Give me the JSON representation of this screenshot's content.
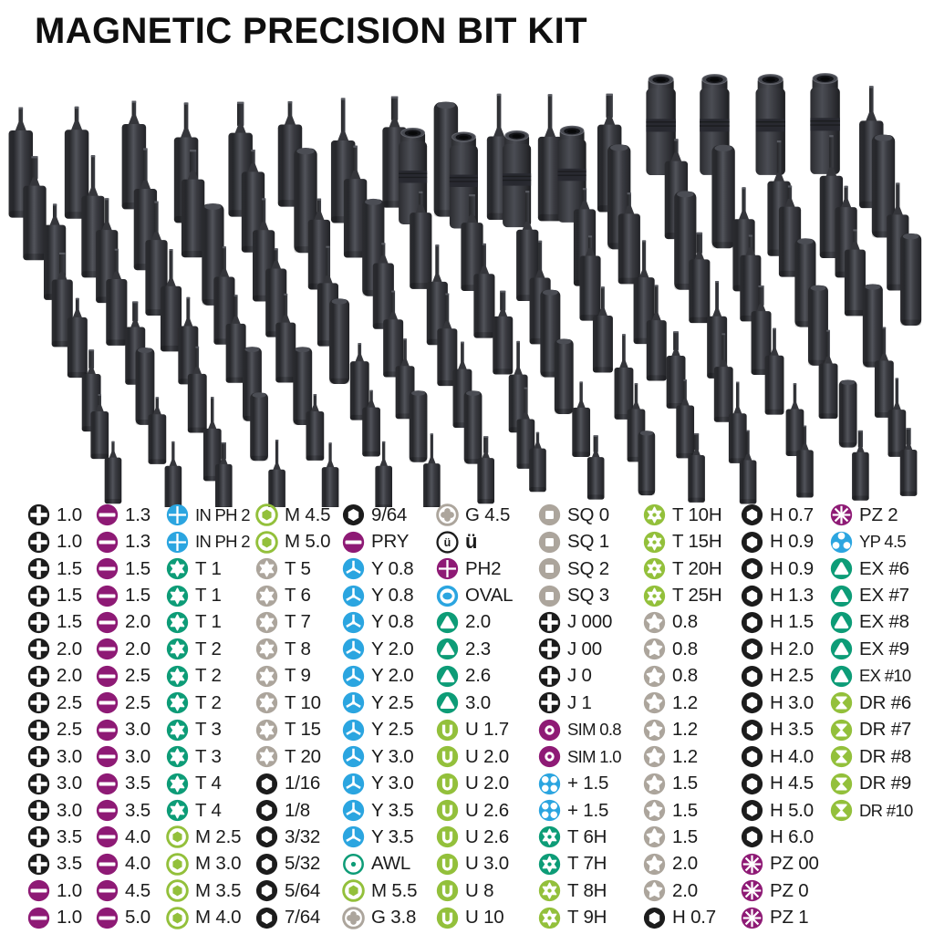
{
  "title": "MAGNETIC PRECISION BIT KIT",
  "colors": {
    "black": "#1c1c1c",
    "purple": "#8e1a75",
    "blue": "#2ba5e0",
    "teal": "#0d9c77",
    "lime": "#93c03b",
    "gray": "#aca59c"
  },
  "legend": {
    "columns": [
      {
        "items": [
          {
            "icon": "ph",
            "color": "black",
            "label": "1.0"
          },
          {
            "icon": "ph",
            "color": "black",
            "label": "1.0"
          },
          {
            "icon": "ph",
            "color": "black",
            "label": "1.5"
          },
          {
            "icon": "ph",
            "color": "black",
            "label": "1.5"
          },
          {
            "icon": "ph",
            "color": "black",
            "label": "1.5"
          },
          {
            "icon": "ph",
            "color": "black",
            "label": "2.0"
          },
          {
            "icon": "ph",
            "color": "black",
            "label": "2.0"
          },
          {
            "icon": "ph",
            "color": "black",
            "label": "2.5"
          },
          {
            "icon": "ph",
            "color": "black",
            "label": "2.5"
          },
          {
            "icon": "ph",
            "color": "black",
            "label": "3.0"
          },
          {
            "icon": "ph",
            "color": "black",
            "label": "3.0"
          },
          {
            "icon": "ph",
            "color": "black",
            "label": "3.0"
          },
          {
            "icon": "ph",
            "color": "black",
            "label": "3.5"
          },
          {
            "icon": "ph",
            "color": "black",
            "label": "3.5"
          },
          {
            "icon": "slot",
            "color": "purple",
            "label": "1.0"
          },
          {
            "icon": "slot",
            "color": "purple",
            "label": "1.0"
          }
        ]
      },
      {
        "items": [
          {
            "icon": "slot",
            "color": "purple",
            "label": "1.3"
          },
          {
            "icon": "slot",
            "color": "purple",
            "label": "1.3"
          },
          {
            "icon": "slot",
            "color": "purple",
            "label": "1.5"
          },
          {
            "icon": "slot",
            "color": "purple",
            "label": "1.5"
          },
          {
            "icon": "slot",
            "color": "purple",
            "label": "2.0"
          },
          {
            "icon": "slot",
            "color": "purple",
            "label": "2.0"
          },
          {
            "icon": "slot",
            "color": "purple",
            "label": "2.5"
          },
          {
            "icon": "slot",
            "color": "purple",
            "label": "2.5"
          },
          {
            "icon": "slot",
            "color": "purple",
            "label": "3.0"
          },
          {
            "icon": "slot",
            "color": "purple",
            "label": "3.0"
          },
          {
            "icon": "slot",
            "color": "purple",
            "label": "3.5"
          },
          {
            "icon": "slot",
            "color": "purple",
            "label": "3.5"
          },
          {
            "icon": "slot",
            "color": "purple",
            "label": "4.0"
          },
          {
            "icon": "slot",
            "color": "purple",
            "label": "4.0"
          },
          {
            "icon": "slot",
            "color": "purple",
            "label": "4.5"
          },
          {
            "icon": "slot",
            "color": "purple",
            "label": "5.0"
          }
        ]
      },
      {
        "items": [
          {
            "icon": "crossthin",
            "color": "blue",
            "label": "IN PH 2"
          },
          {
            "icon": "crossthin",
            "color": "blue",
            "label": "IN PH 2"
          },
          {
            "icon": "torx",
            "color": "teal",
            "label": "T 1"
          },
          {
            "icon": "torx",
            "color": "teal",
            "label": "T 1"
          },
          {
            "icon": "torx",
            "color": "teal",
            "label": "T 1"
          },
          {
            "icon": "torx",
            "color": "teal",
            "label": "T 2"
          },
          {
            "icon": "torx",
            "color": "teal",
            "label": "T 2"
          },
          {
            "icon": "torx",
            "color": "teal",
            "label": "T 2"
          },
          {
            "icon": "torx",
            "color": "teal",
            "label": "T 3"
          },
          {
            "icon": "torx",
            "color": "teal",
            "label": "T 3"
          },
          {
            "icon": "torx",
            "color": "teal",
            "label": "T 4"
          },
          {
            "icon": "torx",
            "color": "teal",
            "label": "T 4"
          },
          {
            "icon": "mhex",
            "color": "lime",
            "label": "M 2.5"
          },
          {
            "icon": "mhex",
            "color": "lime",
            "label": "M 3.0"
          },
          {
            "icon": "mhex",
            "color": "lime",
            "label": "M 3.5"
          },
          {
            "icon": "mhex",
            "color": "lime",
            "label": "M 4.0"
          }
        ]
      },
      {
        "items": [
          {
            "icon": "mhex",
            "color": "lime",
            "label": "M 4.5"
          },
          {
            "icon": "mhex",
            "color": "lime",
            "label": "M 5.0"
          },
          {
            "icon": "torx",
            "color": "gray",
            "label": "T 5"
          },
          {
            "icon": "torx",
            "color": "gray",
            "label": "T 6"
          },
          {
            "icon": "torx",
            "color": "gray",
            "label": "T 7"
          },
          {
            "icon": "torx",
            "color": "gray",
            "label": "T 8"
          },
          {
            "icon": "torx",
            "color": "gray",
            "label": "T 9"
          },
          {
            "icon": "torx",
            "color": "gray",
            "label": "T 10"
          },
          {
            "icon": "torx",
            "color": "gray",
            "label": "T 15"
          },
          {
            "icon": "torx",
            "color": "gray",
            "label": "T 20"
          },
          {
            "icon": "hexring",
            "color": "black",
            "label": "1/16"
          },
          {
            "icon": "hexring",
            "color": "black",
            "label": "1/8"
          },
          {
            "icon": "hexring",
            "color": "black",
            "label": "3/32"
          },
          {
            "icon": "hexring",
            "color": "black",
            "label": "5/32"
          },
          {
            "icon": "hexring",
            "color": "black",
            "label": "5/64"
          },
          {
            "icon": "hexring",
            "color": "black",
            "label": "7/64"
          }
        ]
      },
      {
        "items": [
          {
            "icon": "hexring",
            "color": "black",
            "label": "9/64"
          },
          {
            "icon": "slot",
            "color": "purple",
            "label": "PRY"
          },
          {
            "icon": "triwing",
            "color": "blue",
            "label": "Y 0.8"
          },
          {
            "icon": "triwing",
            "color": "blue",
            "label": "Y 0.8"
          },
          {
            "icon": "triwing",
            "color": "blue",
            "label": "Y 0.8"
          },
          {
            "icon": "triwing",
            "color": "blue",
            "label": "Y 2.0"
          },
          {
            "icon": "triwing",
            "color": "blue",
            "label": "Y 2.0"
          },
          {
            "icon": "triwing",
            "color": "blue",
            "label": "Y 2.5"
          },
          {
            "icon": "triwing",
            "color": "blue",
            "label": "Y 2.5"
          },
          {
            "icon": "triwing",
            "color": "blue",
            "label": "Y 3.0"
          },
          {
            "icon": "triwing",
            "color": "blue",
            "label": "Y 3.0"
          },
          {
            "icon": "triwing",
            "color": "blue",
            "label": "Y 3.5"
          },
          {
            "icon": "triwing",
            "color": "blue",
            "label": "Y 3.5"
          },
          {
            "icon": "awl",
            "color": "teal",
            "label": "AWL"
          },
          {
            "icon": "mhex",
            "color": "lime",
            "label": "M 5.5"
          },
          {
            "icon": "gclover",
            "color": "gray",
            "label": "G 3.8"
          }
        ]
      },
      {
        "items": [
          {
            "icon": "gclover",
            "color": "gray",
            "label": "G 4.5"
          },
          {
            "icon": "uml",
            "color": "black",
            "label": "ü"
          },
          {
            "icon": "crossthin",
            "color": "purple",
            "label": "PH2"
          },
          {
            "icon": "oval",
            "color": "blue",
            "label": "OVAL"
          },
          {
            "icon": "tri",
            "color": "teal",
            "label": "2.0"
          },
          {
            "icon": "tri",
            "color": "teal",
            "label": "2.3"
          },
          {
            "icon": "tri",
            "color": "teal",
            "label": "2.6"
          },
          {
            "icon": "tri",
            "color": "teal",
            "label": "3.0"
          },
          {
            "icon": "u",
            "color": "lime",
            "label": "U 1.7"
          },
          {
            "icon": "u",
            "color": "lime",
            "label": "U 2.0"
          },
          {
            "icon": "u",
            "color": "lime",
            "label": "U 2.0"
          },
          {
            "icon": "u",
            "color": "lime",
            "label": "U 2.6"
          },
          {
            "icon": "u",
            "color": "lime",
            "label": "U 2.6"
          },
          {
            "icon": "u",
            "color": "lime",
            "label": "U 3.0"
          },
          {
            "icon": "u",
            "color": "lime",
            "label": "U 8"
          },
          {
            "icon": "u",
            "color": "lime",
            "label": "U 10"
          }
        ]
      },
      {
        "items": [
          {
            "icon": "square",
            "color": "gray",
            "label": "SQ 0"
          },
          {
            "icon": "square",
            "color": "gray",
            "label": "SQ 1"
          },
          {
            "icon": "square",
            "color": "gray",
            "label": "SQ 2"
          },
          {
            "icon": "square",
            "color": "gray",
            "label": "SQ 3"
          },
          {
            "icon": "ph",
            "color": "black",
            "label": "J 000"
          },
          {
            "icon": "ph",
            "color": "black",
            "label": "J 00"
          },
          {
            "icon": "ph",
            "color": "black",
            "label": "J 0"
          },
          {
            "icon": "ph",
            "color": "black",
            "label": "J 1"
          },
          {
            "icon": "sim",
            "color": "purple",
            "label": "SIM 0.8"
          },
          {
            "icon": "sim",
            "color": "purple",
            "label": "SIM 1.0"
          },
          {
            "icon": "petal4",
            "color": "blue",
            "label": "+ 1.5"
          },
          {
            "icon": "petal4",
            "color": "blue",
            "label": "+ 1.5"
          },
          {
            "icon": "torxsec",
            "color": "teal",
            "label": "T 6H"
          },
          {
            "icon": "torxsec",
            "color": "teal",
            "label": "T 7H"
          },
          {
            "icon": "torxsec",
            "color": "lime",
            "label": "T 8H"
          },
          {
            "icon": "torxsec",
            "color": "lime",
            "label": "T 9H"
          }
        ]
      },
      {
        "items": [
          {
            "icon": "torxsec",
            "color": "lime",
            "label": "T 10H"
          },
          {
            "icon": "torxsec",
            "color": "lime",
            "label": "T 15H"
          },
          {
            "icon": "torxsec",
            "color": "lime",
            "label": "T 20H"
          },
          {
            "icon": "torxsec",
            "color": "lime",
            "label": "T 25H"
          },
          {
            "icon": "penta",
            "color": "gray",
            "label": "0.8"
          },
          {
            "icon": "penta",
            "color": "gray",
            "label": "0.8"
          },
          {
            "icon": "penta",
            "color": "gray",
            "label": "0.8"
          },
          {
            "icon": "penta",
            "color": "gray",
            "label": "1.2"
          },
          {
            "icon": "penta",
            "color": "gray",
            "label": "1.2"
          },
          {
            "icon": "penta",
            "color": "gray",
            "label": "1.2"
          },
          {
            "icon": "penta",
            "color": "gray",
            "label": "1.5"
          },
          {
            "icon": "penta",
            "color": "gray",
            "label": "1.5"
          },
          {
            "icon": "penta",
            "color": "gray",
            "label": "1.5"
          },
          {
            "icon": "penta",
            "color": "gray",
            "label": "2.0"
          },
          {
            "icon": "penta",
            "color": "gray",
            "label": "2.0"
          },
          {
            "icon": "hexring",
            "color": "black",
            "label": "H 0.7"
          }
        ]
      },
      {
        "items": [
          {
            "icon": "hexring",
            "color": "black",
            "label": "H 0.7"
          },
          {
            "icon": "hexring",
            "color": "black",
            "label": "H 0.9"
          },
          {
            "icon": "hexring",
            "color": "black",
            "label": "H 0.9"
          },
          {
            "icon": "hexring",
            "color": "black",
            "label": "H 1.3"
          },
          {
            "icon": "hexring",
            "color": "black",
            "label": "H 1.5"
          },
          {
            "icon": "hexring",
            "color": "black",
            "label": "H 2.0"
          },
          {
            "icon": "hexring",
            "color": "black",
            "label": "H 2.5"
          },
          {
            "icon": "hexring",
            "color": "black",
            "label": "H 3.0"
          },
          {
            "icon": "hexring",
            "color": "black",
            "label": "H 3.5"
          },
          {
            "icon": "hexring",
            "color": "black",
            "label": "H 4.0"
          },
          {
            "icon": "hexring",
            "color": "black",
            "label": "H 4.5"
          },
          {
            "icon": "hexring",
            "color": "black",
            "label": "H 5.0"
          },
          {
            "icon": "hexring",
            "color": "black",
            "label": "H 6.0"
          },
          {
            "icon": "pozi",
            "color": "purple",
            "label": "PZ 00"
          },
          {
            "icon": "pozi",
            "color": "purple",
            "label": "PZ 0"
          },
          {
            "icon": "pozi",
            "color": "purple",
            "label": "PZ 1"
          }
        ]
      },
      {
        "items": [
          {
            "icon": "pozi",
            "color": "purple",
            "label": "PZ 2"
          },
          {
            "icon": "petal3",
            "color": "blue",
            "label": "YP 4.5"
          },
          {
            "icon": "tri",
            "color": "teal",
            "label": "EX #6"
          },
          {
            "icon": "tri",
            "color": "teal",
            "label": "EX #7"
          },
          {
            "icon": "tri",
            "color": "teal",
            "label": "EX #8"
          },
          {
            "icon": "tri",
            "color": "teal",
            "label": "EX #9"
          },
          {
            "icon": "tri",
            "color": "teal",
            "label": "EX #10"
          },
          {
            "icon": "hourglass",
            "color": "lime",
            "label": "DR #6"
          },
          {
            "icon": "hourglass",
            "color": "lime",
            "label": "DR #7"
          },
          {
            "icon": "hourglass",
            "color": "lime",
            "label": "DR #8"
          },
          {
            "icon": "hourglass",
            "color": "lime",
            "label": "DR #9"
          },
          {
            "icon": "hourglass",
            "color": "lime",
            "label": "DR #10"
          }
        ]
      }
    ]
  }
}
